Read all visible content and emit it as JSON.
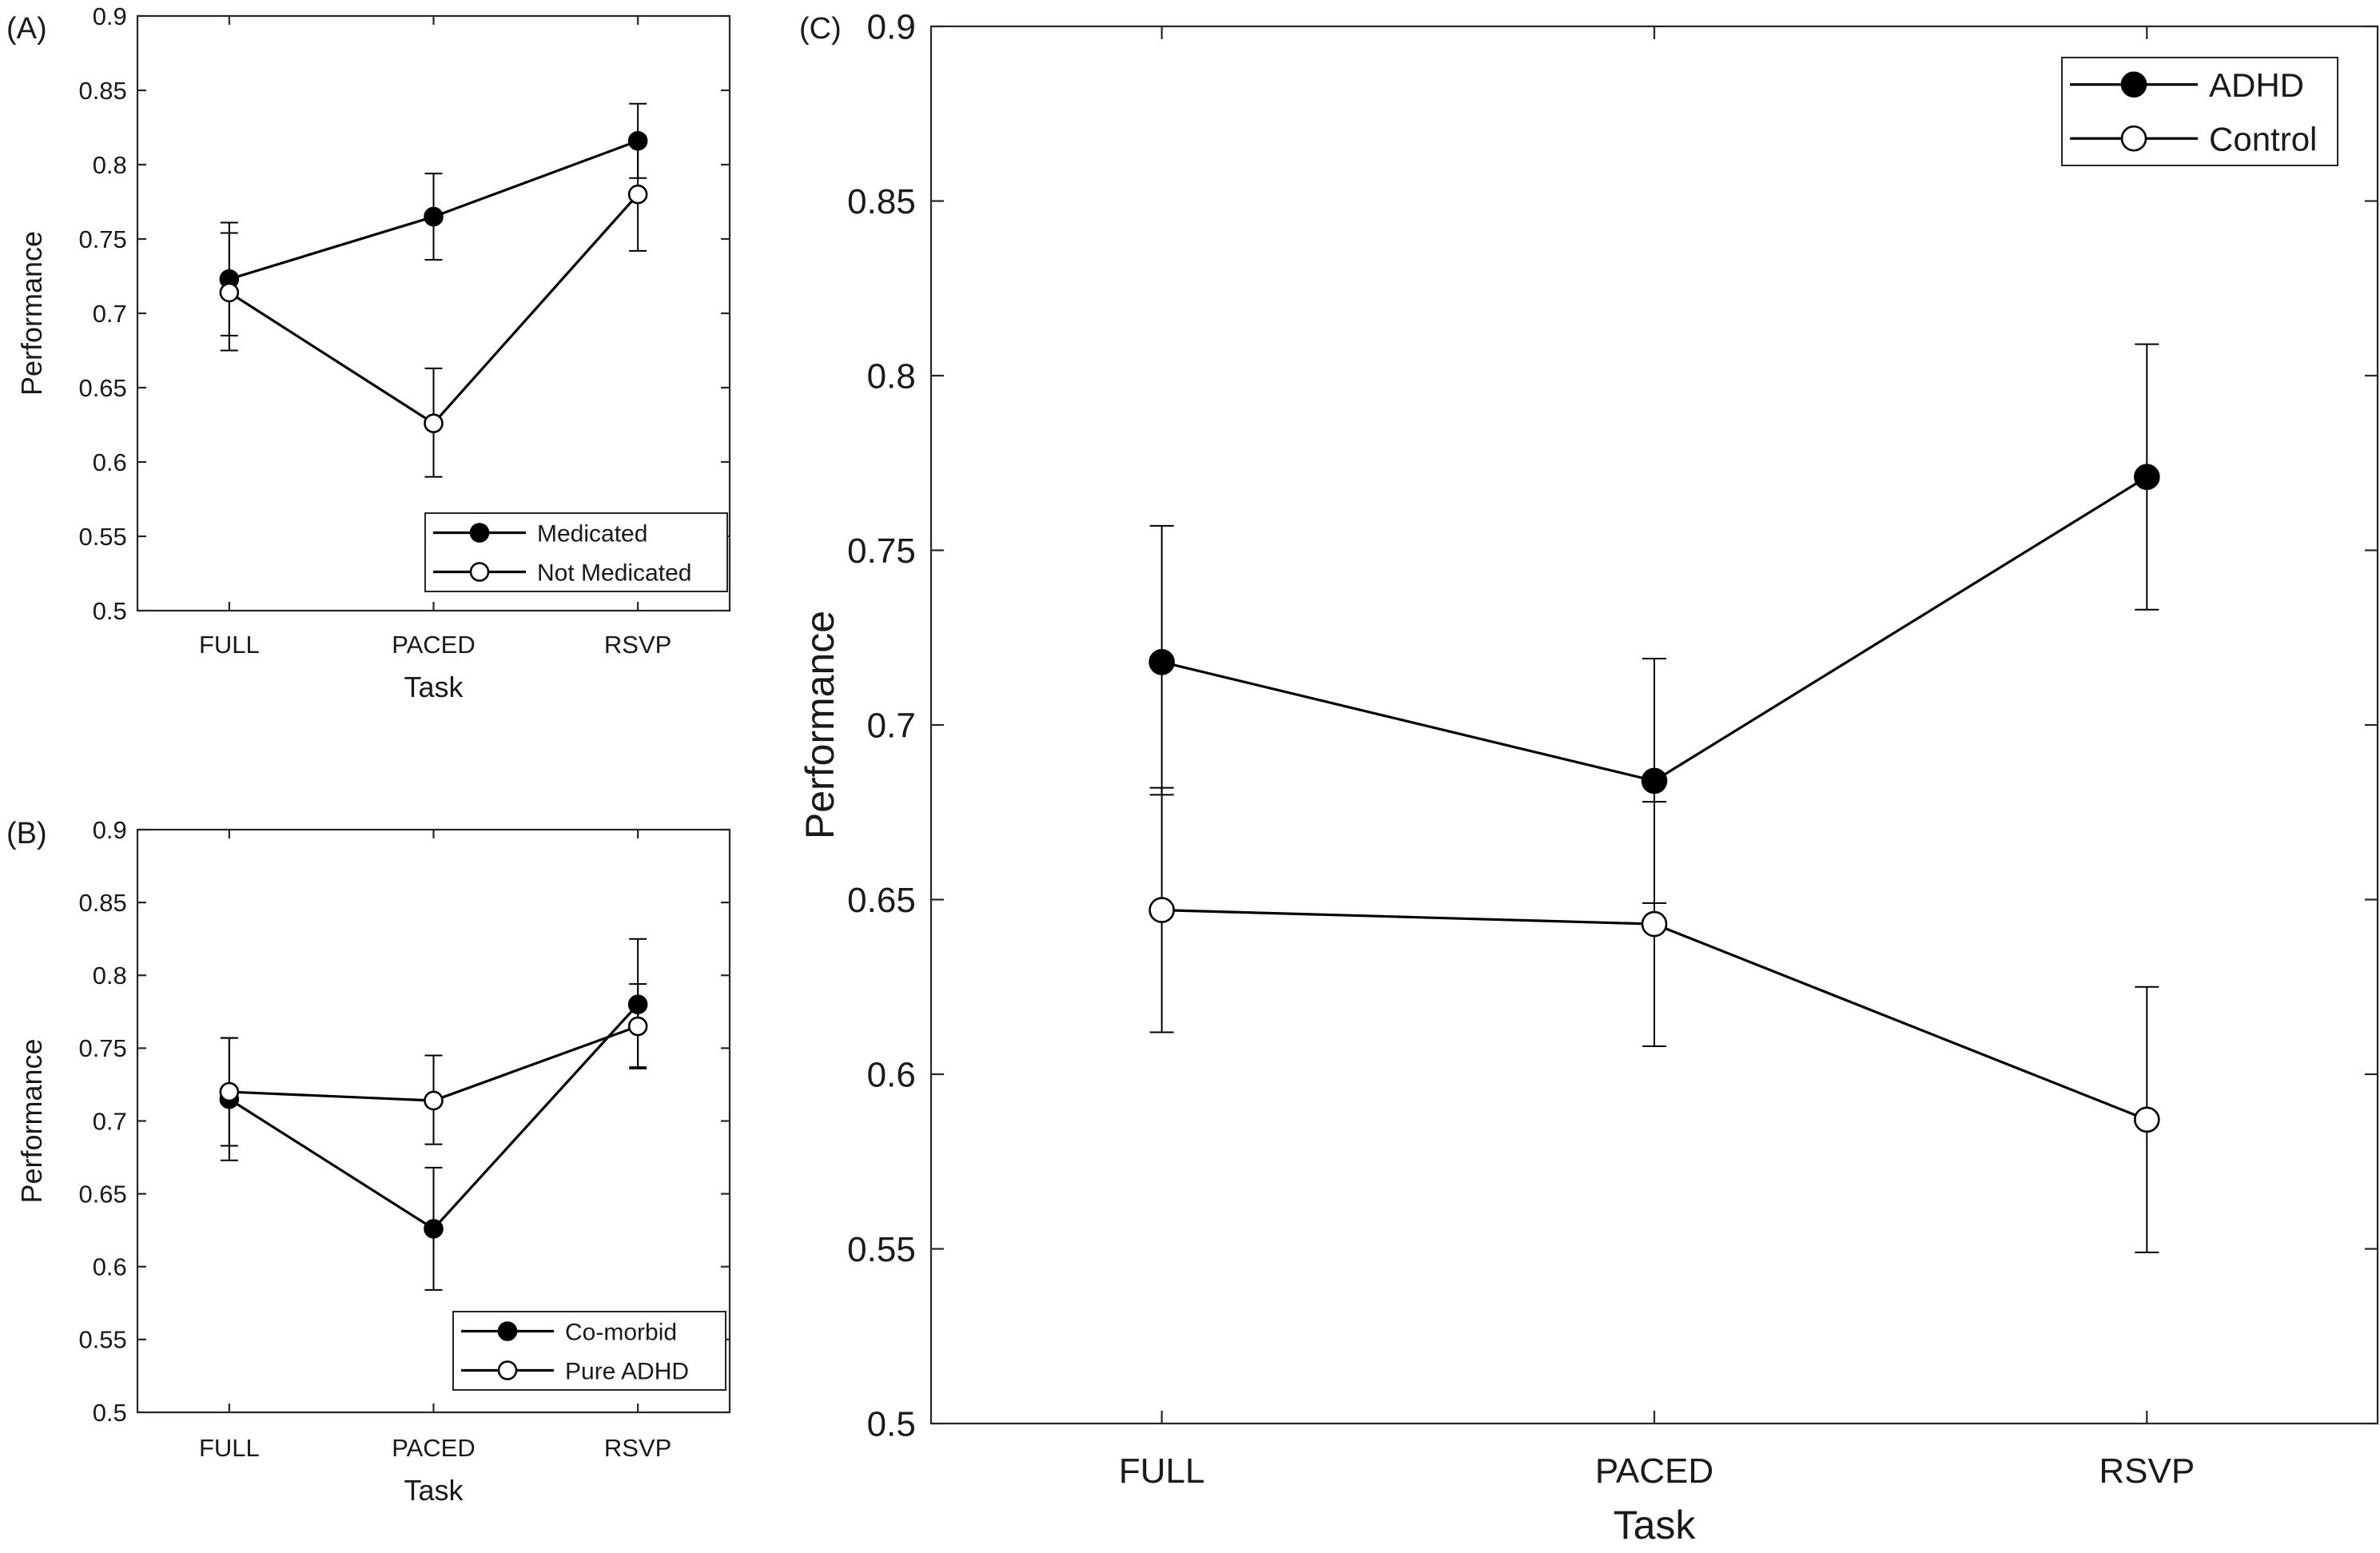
{
  "colors": {
    "line": "#000000",
    "filled_marker": "#000000",
    "open_marker": "#ffffff",
    "axis": "#262626"
  },
  "chart_data": [
    {
      "id": "A",
      "panel_label": "(A)",
      "type": "line",
      "xlabel": "Task",
      "ylabel": "Performance",
      "categories": [
        "FULL",
        "PACED",
        "RSVP"
      ],
      "ylim": [
        0.5,
        0.9
      ],
      "yticks": [
        "0.5",
        "0.55",
        "0.6",
        "0.65",
        "0.7",
        "0.75",
        "0.8",
        "0.85",
        "0.9"
      ],
      "legend_position": "bottom-right",
      "series": [
        {
          "name": "Medicated",
          "marker": "filled",
          "values": [
            0.723,
            0.765,
            0.816
          ],
          "err_low": [
            0.685,
            0.736,
            0.791
          ],
          "err_high": [
            0.761,
            0.794,
            0.841
          ]
        },
        {
          "name": "Not Medicated",
          "marker": "open",
          "values": [
            0.714,
            0.626,
            0.78
          ],
          "err_low": [
            0.675,
            0.59,
            0.742
          ],
          "err_high": [
            0.754,
            0.663,
            0.817
          ]
        }
      ]
    },
    {
      "id": "B",
      "panel_label": "(B)",
      "type": "line",
      "xlabel": "Task",
      "ylabel": "Performance",
      "categories": [
        "FULL",
        "PACED",
        "RSVP"
      ],
      "ylim": [
        0.5,
        0.9
      ],
      "yticks": [
        "0.5",
        "0.55",
        "0.6",
        "0.65",
        "0.7",
        "0.75",
        "0.8",
        "0.85",
        "0.9"
      ],
      "legend_position": "bottom-right",
      "series": [
        {
          "name": "Co-morbid",
          "marker": "filled",
          "values": [
            0.715,
            0.626,
            0.78
          ],
          "err_low": [
            0.673,
            0.584,
            0.737
          ],
          "err_high": [
            0.757,
            0.668,
            0.825
          ]
        },
        {
          "name": "Pure ADHD",
          "marker": "open",
          "values": [
            0.72,
            0.714,
            0.765
          ],
          "err_low": [
            0.683,
            0.684,
            0.736
          ],
          "err_high": [
            0.757,
            0.745,
            0.794
          ]
        }
      ]
    },
    {
      "id": "C",
      "panel_label": "(C)",
      "type": "line",
      "xlabel": "Task",
      "ylabel": "Performance",
      "categories": [
        "FULL",
        "PACED",
        "RSVP"
      ],
      "ylim": [
        0.5,
        0.9
      ],
      "yticks": [
        "0.5",
        "0.55",
        "0.6",
        "0.65",
        "0.7",
        "0.75",
        "0.8",
        "0.85",
        "0.9"
      ],
      "legend_position": "top-right",
      "series": [
        {
          "name": "ADHD",
          "marker": "filled",
          "values": [
            0.718,
            0.684,
            0.771
          ],
          "err_low": [
            0.68,
            0.649,
            0.733
          ],
          "err_high": [
            0.757,
            0.719,
            0.809
          ]
        },
        {
          "name": "Control",
          "marker": "open",
          "values": [
            0.647,
            0.643,
            0.587
          ],
          "err_low": [
            0.612,
            0.608,
            0.549
          ],
          "err_high": [
            0.682,
            0.678,
            0.625
          ]
        }
      ]
    }
  ]
}
